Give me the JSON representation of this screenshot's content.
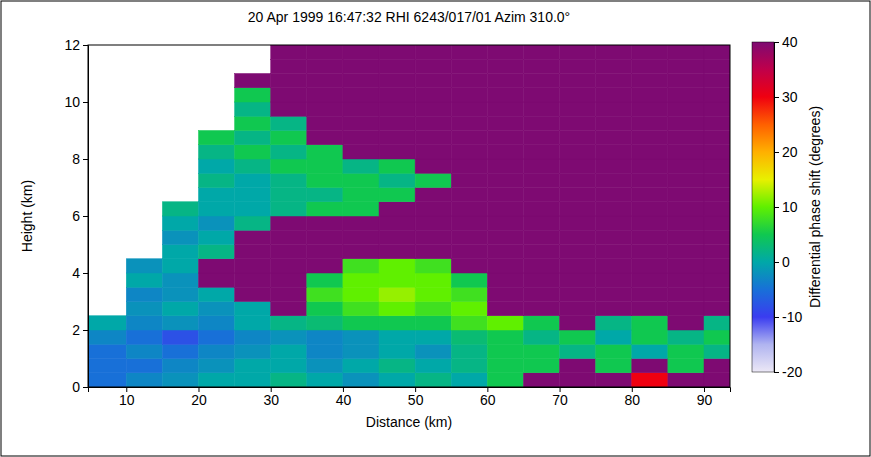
{
  "chart_data": {
    "type": "heatmap",
    "title": "20 Apr 1999 16:47:32 RHI 6243/017/01 Azim 310.0°",
    "x_label": "Distance (km)",
    "y_label": "Height (km)",
    "xlim": [
      4.7,
      93.6
    ],
    "xticks": [
      10,
      20,
      30,
      40,
      50,
      60,
      70,
      80,
      90
    ],
    "ylim": [
      0,
      12
    ],
    "yticks": [
      0,
      2,
      4,
      6,
      8,
      10,
      12
    ],
    "x_edges": [
      4.7,
      10,
      15,
      20,
      25,
      30,
      35,
      40,
      45,
      50,
      55,
      60,
      65,
      70,
      75,
      80,
      85,
      90,
      93.6
    ],
    "y_edges": [
      0,
      0.5,
      1,
      1.5,
      2,
      2.5,
      3,
      3.5,
      4,
      4.5,
      5,
      5.5,
      6,
      6.5,
      7,
      7.5,
      8,
      8.5,
      9,
      9.5,
      10,
      10.5,
      11,
      11.5,
      12
    ],
    "z": [
      [
        -5,
        -3,
        -2,
        0,
        0,
        2,
        0,
        -2,
        0,
        2,
        0,
        5,
        40,
        40,
        40,
        30,
        40,
        40
      ],
      [
        -5,
        -5,
        -3,
        -2,
        0,
        0,
        -2,
        0,
        2,
        0,
        2,
        5,
        5,
        40,
        5,
        40,
        5,
        40
      ],
      [
        -5,
        -3,
        -5,
        -3,
        -2,
        0,
        -3,
        -2,
        0,
        -2,
        2,
        5,
        5,
        2,
        5,
        0,
        5,
        2
      ],
      [
        -3,
        -5,
        -8,
        -5,
        -3,
        -2,
        -3,
        -2,
        0,
        0,
        3,
        5,
        2,
        5,
        0,
        5,
        2,
        5
      ],
      [
        0,
        -3,
        -2,
        -3,
        0,
        2,
        3,
        5,
        5,
        5,
        8,
        10,
        5,
        40,
        2,
        5,
        40,
        2
      ],
      [
        null,
        -2,
        0,
        -2,
        0,
        40,
        5,
        8,
        10,
        8,
        10,
        40,
        40,
        40,
        40,
        40,
        40,
        40
      ],
      [
        null,
        -3,
        -2,
        0,
        40,
        40,
        8,
        10,
        12,
        10,
        8,
        40,
        40,
        40,
        40,
        40,
        40,
        40
      ],
      [
        null,
        0,
        -2,
        40,
        40,
        40,
        5,
        10,
        10,
        10,
        5,
        40,
        40,
        40,
        40,
        40,
        40,
        40
      ],
      [
        null,
        -2,
        0,
        40,
        40,
        40,
        40,
        8,
        10,
        8,
        40,
        40,
        40,
        40,
        40,
        40,
        40,
        40
      ],
      [
        null,
        null,
        0,
        2,
        40,
        40,
        40,
        40,
        40,
        40,
        40,
        40,
        40,
        40,
        40,
        40,
        40,
        40
      ],
      [
        null,
        null,
        -2,
        0,
        40,
        40,
        40,
        40,
        40,
        40,
        40,
        40,
        40,
        40,
        40,
        40,
        40,
        40
      ],
      [
        null,
        null,
        0,
        -2,
        2,
        40,
        40,
        40,
        40,
        40,
        40,
        40,
        40,
        40,
        40,
        40,
        40,
        40
      ],
      [
        null,
        null,
        2,
        0,
        0,
        2,
        5,
        5,
        40,
        40,
        40,
        40,
        40,
        40,
        40,
        40,
        40,
        40
      ],
      [
        null,
        null,
        null,
        0,
        0,
        2,
        2,
        5,
        5,
        40,
        40,
        40,
        40,
        40,
        40,
        40,
        40,
        40
      ],
      [
        null,
        null,
        null,
        2,
        0,
        2,
        5,
        5,
        2,
        5,
        40,
        40,
        40,
        40,
        40,
        40,
        40,
        40
      ],
      [
        null,
        null,
        null,
        0,
        2,
        5,
        5,
        2,
        5,
        40,
        40,
        40,
        40,
        40,
        40,
        40,
        40,
        40
      ],
      [
        null,
        null,
        null,
        2,
        5,
        2,
        5,
        40,
        40,
        40,
        40,
        40,
        40,
        40,
        40,
        40,
        40,
        40
      ],
      [
        null,
        null,
        null,
        5,
        2,
        5,
        40,
        40,
        40,
        40,
        40,
        40,
        40,
        40,
        40,
        40,
        40,
        40
      ],
      [
        null,
        null,
        null,
        null,
        5,
        2,
        40,
        40,
        40,
        40,
        40,
        40,
        40,
        40,
        40,
        40,
        40,
        40
      ],
      [
        null,
        null,
        null,
        null,
        2,
        40,
        40,
        40,
        40,
        40,
        40,
        40,
        40,
        40,
        40,
        40,
        40,
        40
      ],
      [
        null,
        null,
        null,
        null,
        5,
        40,
        40,
        40,
        40,
        40,
        40,
        40,
        40,
        40,
        40,
        40,
        40,
        40
      ],
      [
        null,
        null,
        null,
        null,
        40,
        40,
        40,
        40,
        40,
        40,
        40,
        40,
        40,
        40,
        40,
        40,
        40,
        40
      ],
      [
        null,
        null,
        null,
        null,
        null,
        40,
        40,
        40,
        40,
        40,
        40,
        40,
        40,
        40,
        40,
        40,
        40,
        40
      ],
      [
        null,
        null,
        null,
        null,
        null,
        40,
        40,
        40,
        40,
        40,
        40,
        40,
        40,
        40,
        40,
        40,
        40,
        40
      ]
    ],
    "colorbar": {
      "label": "Differential phase shift (degrees)",
      "range": [
        -20,
        40
      ],
      "ticks": [
        -20,
        -10,
        0,
        10,
        20,
        30,
        40
      ]
    }
  }
}
